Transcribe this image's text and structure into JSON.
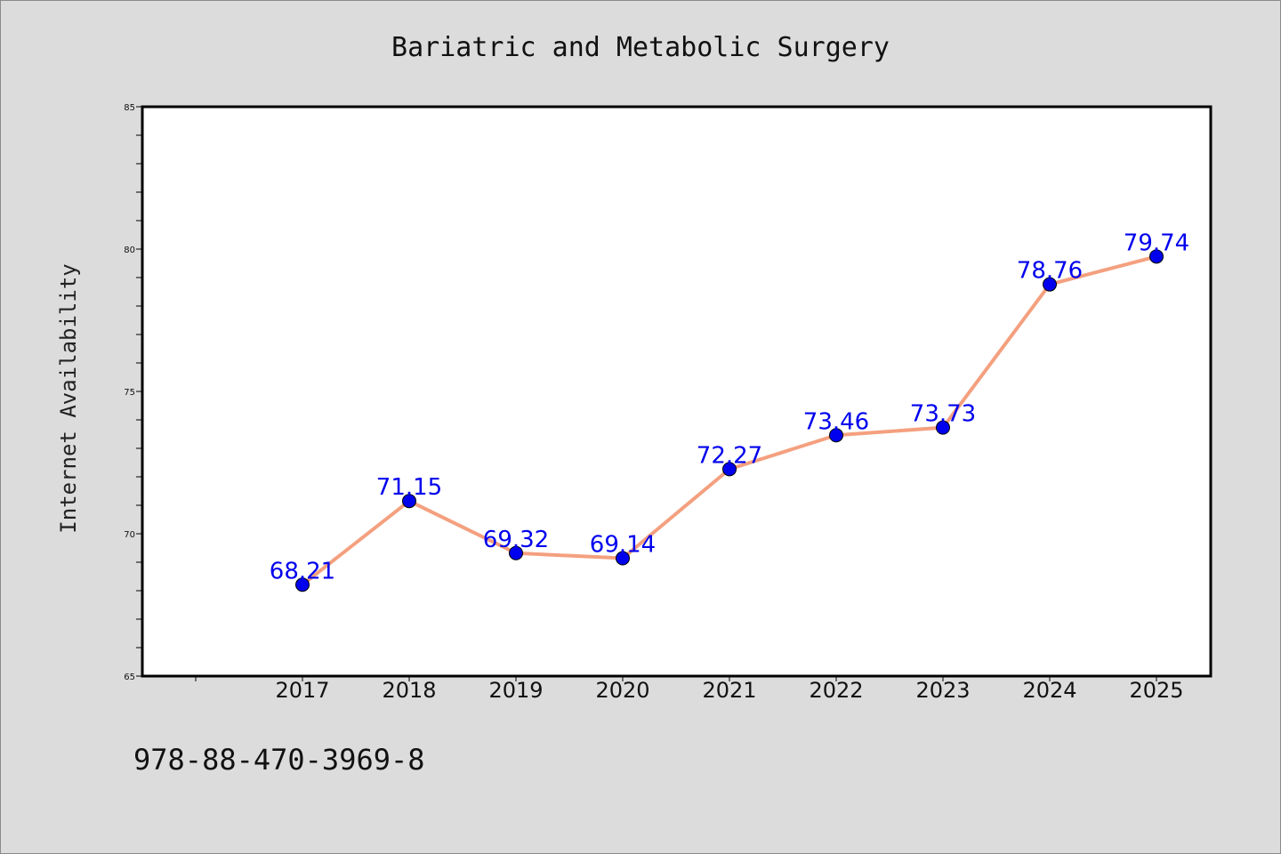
{
  "chart_data": {
    "type": "line",
    "title": "Bariatric and Metabolic Surgery",
    "ylabel": "Internet Availability",
    "xlabel": "",
    "categories": [
      "2017",
      "2018",
      "2019",
      "2020",
      "2021",
      "2022",
      "2023",
      "2024",
      "2025"
    ],
    "values": [
      68.21,
      71.15,
      69.32,
      69.14,
      72.27,
      73.46,
      73.73,
      78.76,
      79.74
    ],
    "value_labels": [
      "68.21",
      "71.15",
      "69.32",
      "69.14",
      "72.27",
      "73.46",
      "73.73",
      "78.76",
      "79.74"
    ],
    "ylim": [
      65,
      85
    ],
    "yticks": [
      "65",
      "70",
      "75",
      "80",
      "85"
    ],
    "grid": false,
    "line_color": "#f4a07f",
    "marker_color": "#0000ee",
    "label_color": "#0000ee"
  },
  "footnote": "978-88-470-3969-8"
}
